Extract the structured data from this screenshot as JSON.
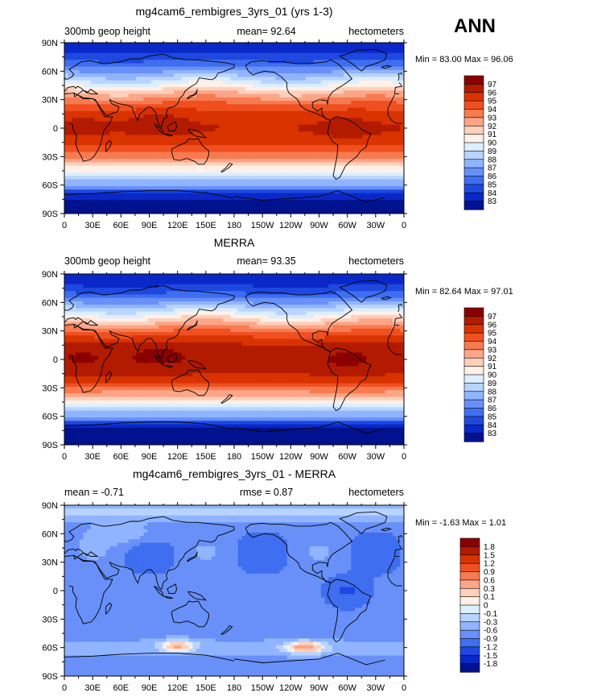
{
  "figure_title": "ANN",
  "chart_data": [
    {
      "type": "heatmap",
      "title": "mg4cam6_rembigres_3yrs_01 (yrs 1-3)",
      "left_label": "300mb geop height",
      "center_label": "mean=  92.64",
      "right_label": "hectometers",
      "minmax": "Min =  83.00 Max =  96.06",
      "field": "model",
      "xticks": [
        "0",
        "30E",
        "60E",
        "90E",
        "120E",
        "150E",
        "180",
        "150W",
        "120W",
        "90W",
        "60W",
        "30W",
        "0"
      ],
      "yticks": [
        "90N",
        "60N",
        "30N",
        "0",
        "30S",
        "60S",
        "90S"
      ],
      "colorbar_labels": [
        "97",
        "96",
        "95",
        "94",
        "93",
        "92",
        "91",
        "90",
        "89",
        "88",
        "87",
        "86",
        "85",
        "84",
        "83"
      ],
      "colors": [
        "#8b0000",
        "#b21b00",
        "#d93300",
        "#f05020",
        "#f77b50",
        "#fca588",
        "#fdd0bb",
        "#fff0e8",
        "#dceeff",
        "#b8d4ff",
        "#90b4ff",
        "#6890f8",
        "#3f6ef0",
        "#1e48e0",
        "#0a28c8",
        "#00128e"
      ]
    },
    {
      "type": "heatmap",
      "title": "MERRA",
      "left_label": "300mb geop height",
      "center_label": "mean=  93.35",
      "right_label": "hectometers",
      "minmax": "Min =  82.64 Max =  97.01",
      "field": "obs",
      "xticks": [
        "0",
        "30E",
        "60E",
        "90E",
        "120E",
        "150E",
        "180",
        "150W",
        "120W",
        "90W",
        "60W",
        "30W",
        "0"
      ],
      "yticks": [
        "90N",
        "60N",
        "30N",
        "0",
        "30S",
        "60S",
        "90S"
      ],
      "colorbar_labels": [
        "97",
        "96",
        "95",
        "94",
        "93",
        "92",
        "91",
        "90",
        "89",
        "88",
        "87",
        "86",
        "85",
        "84",
        "83"
      ],
      "colors": [
        "#8b0000",
        "#b21b00",
        "#d93300",
        "#f05020",
        "#f77b50",
        "#fca588",
        "#fdd0bb",
        "#fff0e8",
        "#dceeff",
        "#b8d4ff",
        "#90b4ff",
        "#6890f8",
        "#3f6ef0",
        "#1e48e0",
        "#0a28c8",
        "#00128e"
      ]
    },
    {
      "type": "heatmap",
      "title": "mg4cam6_rembigres_3yrs_01 - MERRA",
      "left_label": "mean =  -0.71",
      "center_label": "rmse =   0.87",
      "right_label": "hectometers",
      "minmax": "Min =  -1.63 Max =   1.01",
      "field": "diff",
      "xticks": [
        "0",
        "30E",
        "60E",
        "90E",
        "120E",
        "150E",
        "180",
        "150W",
        "120W",
        "90W",
        "60W",
        "30W",
        "0"
      ],
      "yticks": [
        "90N",
        "60N",
        "30N",
        "0",
        "30S",
        "60S",
        "90S"
      ],
      "colorbar_labels": [
        "1.8",
        "1.5",
        "1.2",
        "0.9",
        "0.6",
        "0.3",
        "0.1",
        "0",
        "-0.1",
        "-0.3",
        "-0.6",
        "-0.9",
        "-1.2",
        "-1.5",
        "-1.8"
      ],
      "colors": [
        "#8b0000",
        "#b21b00",
        "#d93300",
        "#f05020",
        "#f77b50",
        "#fca588",
        "#fdd0bb",
        "#fff0e8",
        "#dceeff",
        "#b8d4ff",
        "#90b4ff",
        "#6890f8",
        "#3f6ef0",
        "#1e48e0",
        "#0a28c8",
        "#00128e"
      ]
    }
  ]
}
